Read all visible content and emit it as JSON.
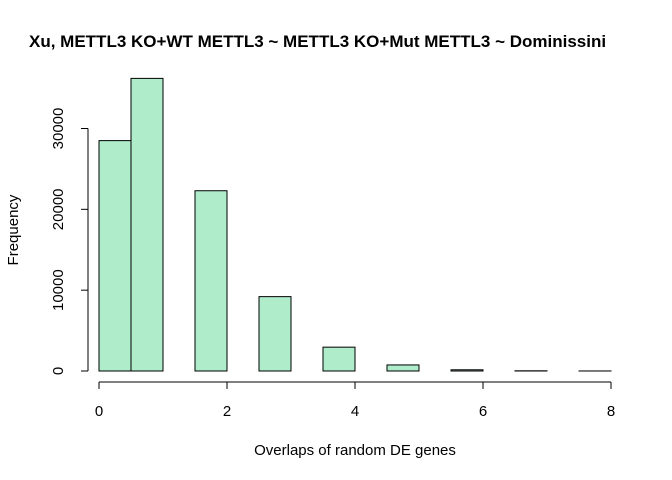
{
  "chart_data": {
    "type": "bar",
    "title": "Xu, METTL3 KO+WT METTL3 ~ METTL3 KO+Mut METTL3 ~ Dominissini",
    "xlabel": "Overlaps of random DE genes",
    "ylabel": "Frequency",
    "xlim": [
      0,
      8
    ],
    "ylim": [
      0,
      36000
    ],
    "x_ticks": [
      "0",
      "2",
      "4",
      "6",
      "8"
    ],
    "y_ticks": [
      "0",
      "10000",
      "20000",
      "30000"
    ],
    "bins": [
      {
        "x0": 0.0,
        "x1": 0.5,
        "value": 28500
      },
      {
        "x0": 0.5,
        "x1": 1.0,
        "value": 36200
      },
      {
        "x0": 1.0,
        "x1": 1.5,
        "value": 0
      },
      {
        "x0": 1.5,
        "x1": 2.0,
        "value": 22300
      },
      {
        "x0": 2.0,
        "x1": 2.5,
        "value": 0
      },
      {
        "x0": 2.5,
        "x1": 3.0,
        "value": 9200
      },
      {
        "x0": 3.0,
        "x1": 3.5,
        "value": 0
      },
      {
        "x0": 3.5,
        "x1": 4.0,
        "value": 2950
      },
      {
        "x0": 4.0,
        "x1": 4.5,
        "value": 0
      },
      {
        "x0": 4.5,
        "x1": 5.0,
        "value": 750
      },
      {
        "x0": 5.0,
        "x1": 5.5,
        "value": 0
      },
      {
        "x0": 5.5,
        "x1": 6.0,
        "value": 150
      },
      {
        "x0": 6.0,
        "x1": 6.5,
        "value": 0
      },
      {
        "x0": 6.5,
        "x1": 7.0,
        "value": 25
      },
      {
        "x0": 7.0,
        "x1": 7.5,
        "value": 0
      },
      {
        "x0": 7.5,
        "x1": 8.0,
        "value": 5
      }
    ],
    "bar_color": "#aeecca",
    "grid": false
  }
}
